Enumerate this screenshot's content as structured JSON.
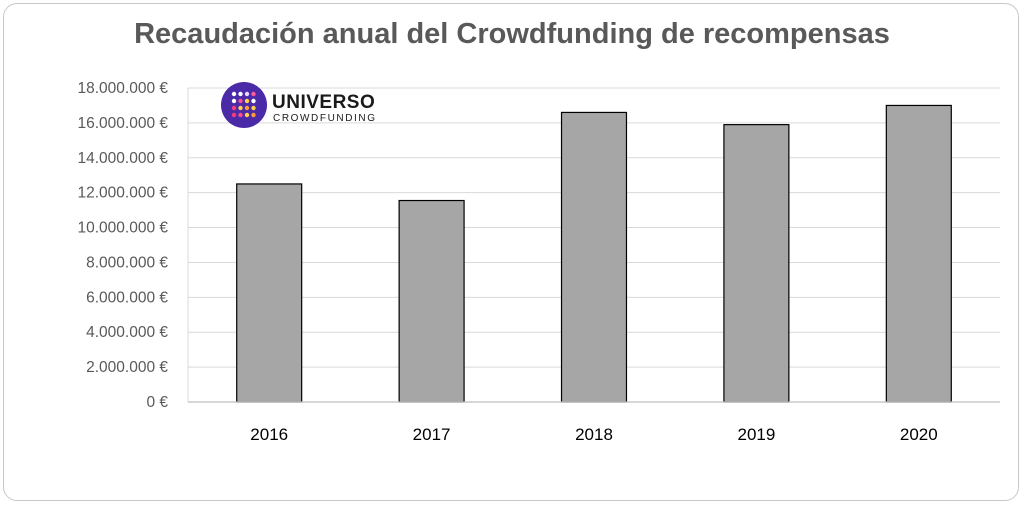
{
  "chart_data": {
    "type": "bar",
    "title": "Recaudación anual del Crowdfunding de recompensas",
    "categories": [
      "2016",
      "2017",
      "2018",
      "2019",
      "2020"
    ],
    "values": [
      12500000,
      11550000,
      16600000,
      15900000,
      17000000
    ],
    "ylim": [
      0,
      18000000
    ],
    "y_ticks": [
      0,
      2000000,
      4000000,
      6000000,
      8000000,
      10000000,
      12000000,
      14000000,
      16000000,
      18000000
    ],
    "y_tick_labels": [
      "0 €",
      "2.000.000 €",
      "4.000.000 €",
      "6.000.000 €",
      "8.000.000 €",
      "10.000.000 €",
      "12.000.000 €",
      "14.000.000 €",
      "16.000.000 €",
      "18.000.000 €"
    ],
    "grid": true,
    "bar_color": "#a6a6a6",
    "bar_edge_color": "#000000",
    "grid_color": "#d9d9d9"
  },
  "logo": {
    "name": "UNIVERSO",
    "tagline": "CROWDFUNDING",
    "badge_color": "#4b2aa8"
  }
}
